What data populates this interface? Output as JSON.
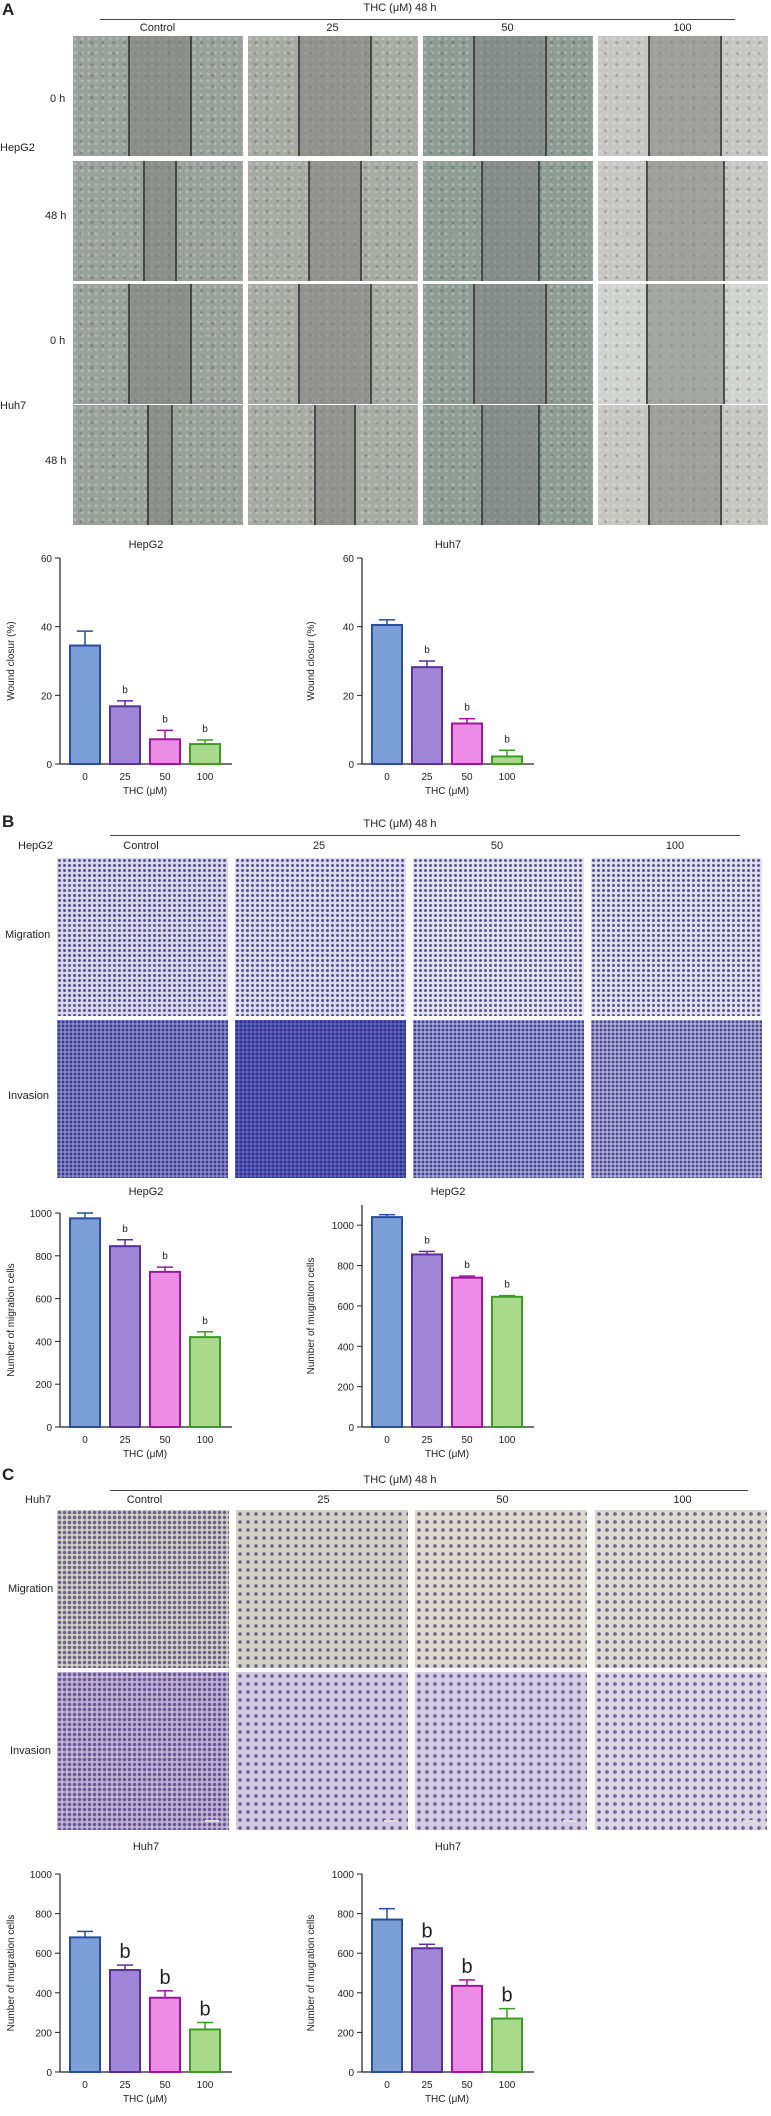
{
  "panel_a": {
    "letter": "A",
    "header": "THC (μM) 48 h",
    "columns": [
      "Control",
      "25",
      "50",
      "100"
    ],
    "rows": [
      {
        "group": "HepG2",
        "time": "0 h"
      },
      {
        "group": "",
        "time": "48 h"
      },
      {
        "group": "Huh7",
        "time": "0 h"
      },
      {
        "group": "",
        "time": "48 h"
      }
    ]
  },
  "panel_b": {
    "letter": "B",
    "header": "THC (μM) 48 h",
    "cell_line": "HepG2",
    "columns": [
      "Control",
      "25",
      "50",
      "100"
    ],
    "rows": [
      "Migration",
      "Invasion"
    ]
  },
  "panel_c": {
    "letter": "C",
    "header": "THC (μM) 48 h",
    "cell_line": "Huh7",
    "columns": [
      "Control",
      "25",
      "50",
      "100"
    ],
    "rows": [
      "Migration",
      "Invasion"
    ]
  },
  "colors": {
    "bar0_fill": "#7b9fd6",
    "bar0_stroke": "#2a4d9c",
    "bar1_fill": "#9f86d6",
    "bar1_stroke": "#5a2f9c",
    "bar2_fill": "#ec8ce6",
    "bar2_stroke": "#a0169a",
    "bar3_fill": "#a9d98a",
    "bar3_stroke": "#3d9a25"
  },
  "chart_data": [
    {
      "type": "bar",
      "title": "HepG2",
      "categories": [
        "0",
        "25",
        "50",
        "100"
      ],
      "values": [
        34.5,
        16.8,
        7.2,
        5.8
      ],
      "errors": [
        4.2,
        1.6,
        2.6,
        1.2
      ],
      "sig": [
        "",
        "b",
        "b",
        "b"
      ],
      "xlabel": "THC (μM)",
      "ylabel": "Wound closur (%)",
      "ylim": [
        0,
        60
      ],
      "yticks": [
        "0",
        "20",
        "40",
        "60"
      ],
      "sig_size": "small"
    },
    {
      "type": "bar",
      "title": "Huh7",
      "categories": [
        "0",
        "25",
        "50",
        "100"
      ],
      "values": [
        40.5,
        28.2,
        11.8,
        2.2
      ],
      "errors": [
        1.5,
        1.8,
        1.4,
        1.8
      ],
      "sig": [
        "",
        "b",
        "b",
        "b"
      ],
      "xlabel": "THC (μM)",
      "ylabel": "Wound closur (%)",
      "ylim": [
        0,
        60
      ],
      "yticks": [
        "0",
        "20",
        "40",
        "60"
      ],
      "sig_size": "small"
    },
    {
      "type": "bar",
      "title": "HepG2",
      "categories": [
        "0",
        "25",
        "50",
        "100"
      ],
      "values": [
        975,
        845,
        725,
        420
      ],
      "errors": [
        25,
        30,
        22,
        25
      ],
      "sig": [
        "",
        "b",
        "b",
        "b"
      ],
      "xlabel": "THC (μM)",
      "ylabel": "Number of migration cells",
      "ylim": [
        0,
        1000
      ],
      "yticks": [
        "0",
        "200",
        "400",
        "600",
        "800",
        "1000"
      ],
      "sig_size": "small"
    },
    {
      "type": "bar",
      "title": "HepG2",
      "categories": [
        "0",
        "25",
        "50",
        "100"
      ],
      "values": [
        1040,
        855,
        740,
        645
      ],
      "errors": [
        12,
        15,
        8,
        6
      ],
      "sig": [
        "",
        "b",
        "b",
        "b"
      ],
      "xlabel": "THC (μM)",
      "ylabel": "Number of mugration cells",
      "ylim": [
        0,
        1100
      ],
      "yticks": [
        "0",
        "200",
        "400",
        "600",
        "800",
        "1000"
      ],
      "sig_size": "small"
    },
    {
      "type": "bar",
      "title": "Huh7",
      "categories": [
        "0",
        "25",
        "50",
        "100"
      ],
      "values": [
        680,
        515,
        375,
        215
      ],
      "errors": [
        30,
        25,
        35,
        35
      ],
      "sig": [
        "",
        "b",
        "b",
        "b"
      ],
      "xlabel": "THC (μM)",
      "ylabel": "Number of mugration cells",
      "ylim": [
        0,
        1000
      ],
      "yticks": [
        "0",
        "200",
        "400",
        "600",
        "800",
        "1000"
      ],
      "sig_size": "large"
    },
    {
      "type": "bar",
      "title": "Huh7",
      "categories": [
        "0",
        "25",
        "50",
        "100"
      ],
      "values": [
        770,
        625,
        435,
        270
      ],
      "errors": [
        55,
        20,
        30,
        50
      ],
      "sig": [
        "",
        "b",
        "b",
        "b"
      ],
      "xlabel": "THC (μM)",
      "ylabel": "Number of mugration cells",
      "ylim": [
        0,
        1000
      ],
      "yticks": [
        "0",
        "200",
        "400",
        "600",
        "800",
        "1000"
      ],
      "sig_size": "large"
    }
  ]
}
